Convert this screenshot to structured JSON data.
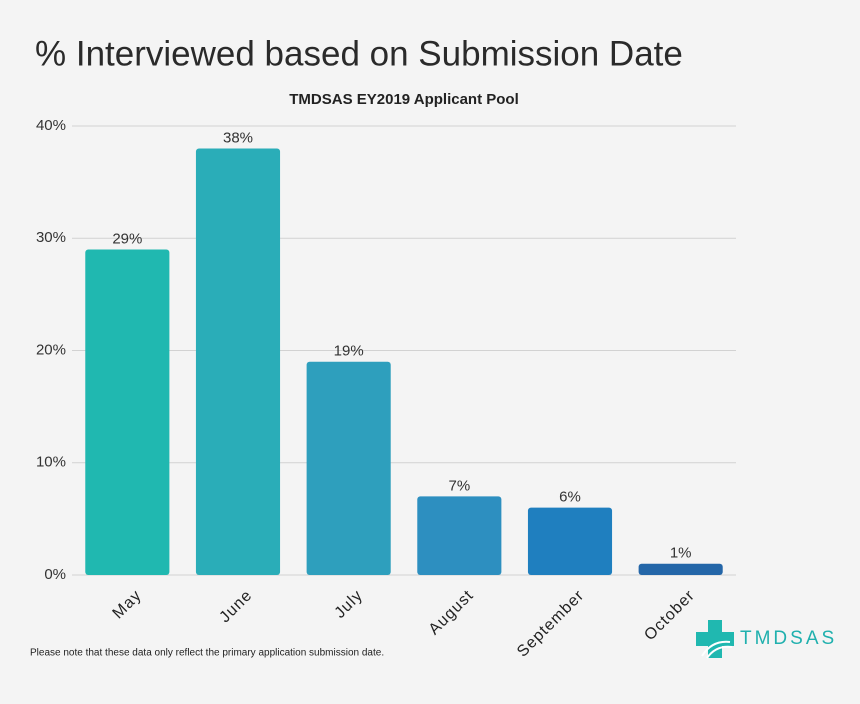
{
  "chart_data": {
    "type": "bar",
    "title": "% Interviewed based on Submission Date",
    "subtitle": "TMDSAS EY2019 Applicant Pool",
    "categories": [
      "May",
      "June",
      "July",
      "August",
      "September",
      "October"
    ],
    "values": [
      29,
      38,
      19,
      7,
      6,
      1
    ],
    "value_labels": [
      "29%",
      "38%",
      "19%",
      "7%",
      "6%",
      "1%"
    ],
    "colors": [
      "#20b8b0",
      "#2aadb8",
      "#2e9fbd",
      "#2d8fc0",
      "#1f7fbf",
      "#2466a8"
    ],
    "ylim": [
      0,
      40
    ],
    "yticks": [
      {
        "value": 0,
        "label": "0%"
      },
      {
        "value": 10,
        "label": "10%"
      },
      {
        "value": 20,
        "label": "20%"
      },
      {
        "value": 30,
        "label": "30%"
      },
      {
        "value": 40,
        "label": "40%"
      }
    ],
    "grid": true,
    "note": "Please note that these data only reflect the primary application submission date.",
    "logo_text": "TMDSAS"
  }
}
